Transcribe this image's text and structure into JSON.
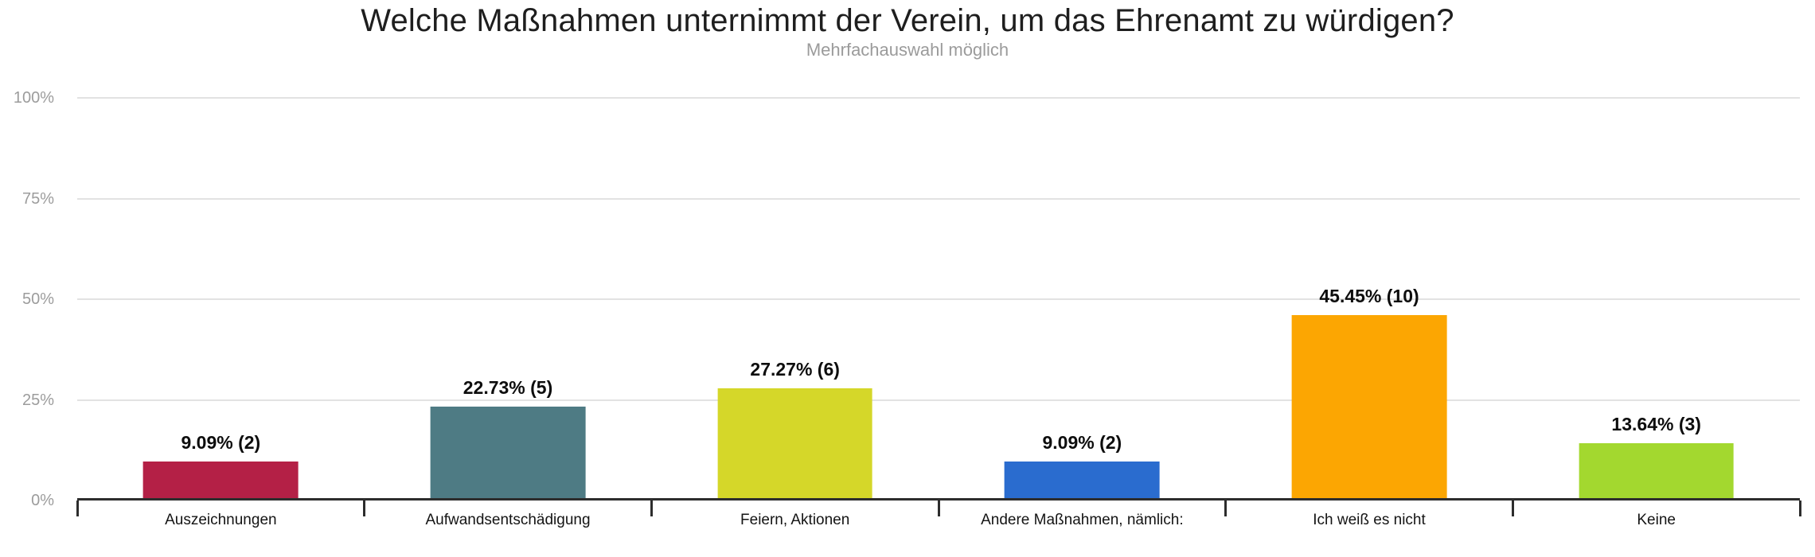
{
  "chart_data": {
    "type": "bar",
    "title": "Welche Maßnahmen unternimmt der Verein, um das Ehrenamt zu würdigen?",
    "subtitle": "Mehrfachauswahl möglich",
    "categories": [
      "Auszeichnungen",
      "Aufwandsentschädigung",
      "Feiern, Aktionen",
      "Andere Maßnahmen, nämlich:",
      "Ich weiß es nicht",
      "Keine"
    ],
    "values_percent": [
      9.09,
      22.73,
      27.27,
      9.09,
      45.45,
      13.64
    ],
    "counts": [
      2,
      5,
      6,
      2,
      10,
      3
    ],
    "bar_labels": [
      "9.09% (2)",
      "22.73% (5)",
      "27.27% (6)",
      "9.09% (2)",
      "45.45% (10)",
      "13.64% (3)"
    ],
    "bar_colors": [
      "#B42046",
      "#4E7B84",
      "#D5D729",
      "#2A6CCF",
      "#FCA602",
      "#A3D82F"
    ],
    "xlabel": "",
    "ylabel": "",
    "ylim": [
      0,
      100
    ],
    "y_ticks": [
      "100%",
      "75%",
      "50%",
      "25%",
      "0%"
    ],
    "grid": true,
    "legend": false,
    "colors": {
      "background": "#ffffff",
      "axis": "#2d2d2d",
      "gridline": "#e2e2e2",
      "title_text": "#1e1e1e",
      "subtitle_text": "#9b9b9b",
      "ytick_text": "#9c9c9c",
      "label_text": "#0d0d0d"
    }
  }
}
